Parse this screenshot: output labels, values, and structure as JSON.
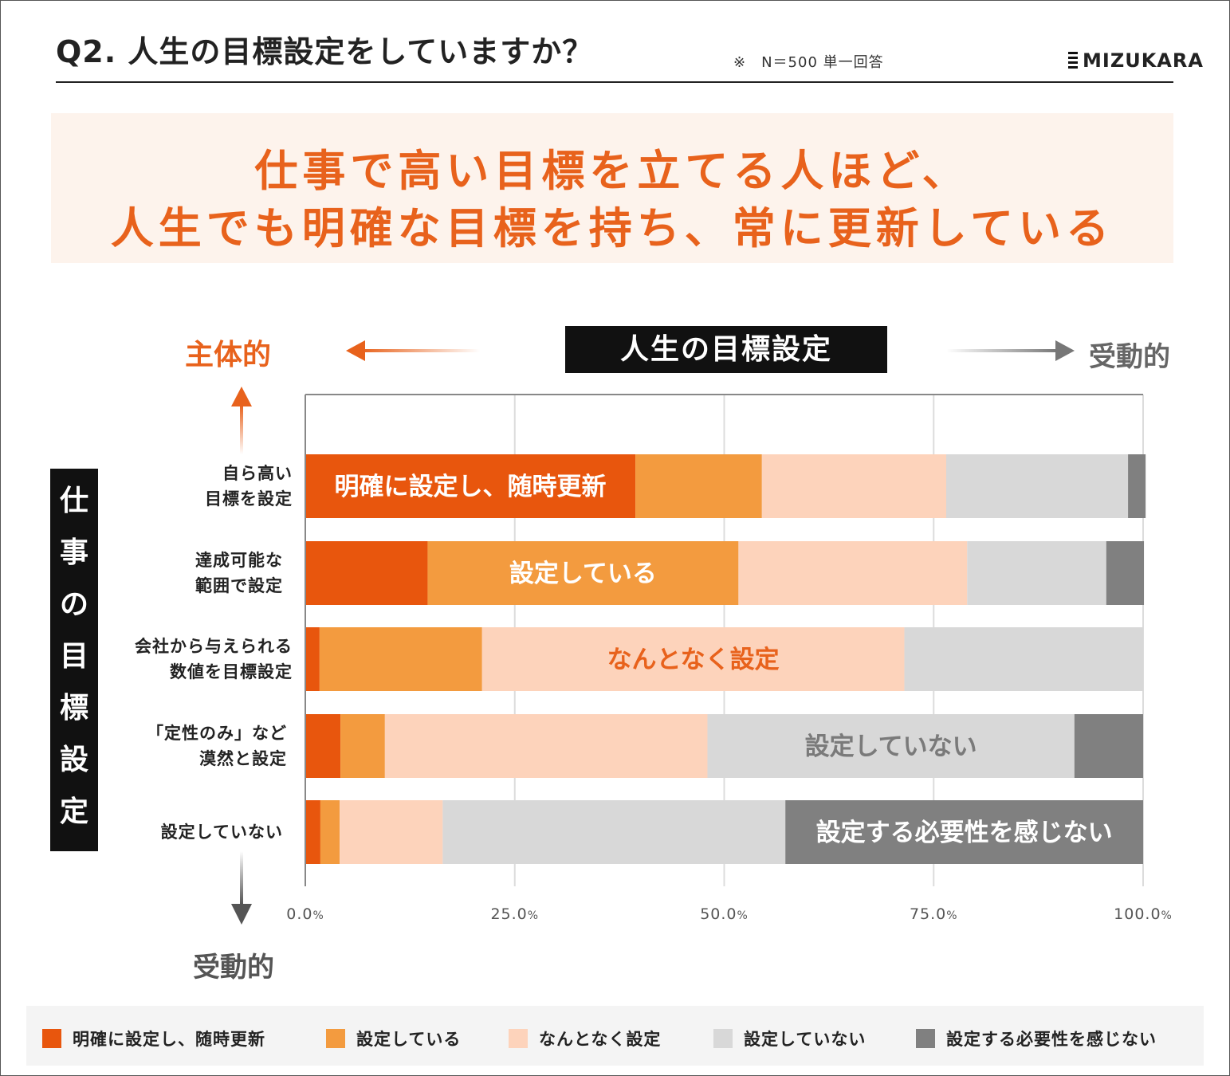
{
  "header": {
    "title": "Q2. 人生の目標設定をしていますか？",
    "note": "※　N＝500 単一回答",
    "logo": "MIZUKARA"
  },
  "headline": {
    "line1": "仕事で高い目標を立てる人ほど、",
    "line2": "人生でも明確な目標を持ち、常に更新している"
  },
  "axis_labels": {
    "life_goal_title": "人生の目標設定",
    "left_word": "主体的",
    "right_word": "受動的",
    "bottom_word": "受動的",
    "work_goal_title": [
      "仕",
      "事",
      "の",
      "目",
      "標",
      "設",
      "定"
    ]
  },
  "colors": {
    "accent": "#e8621c",
    "series": [
      "#e8560d",
      "#f39b3f",
      "#fdd3bb",
      "#d8d8d8",
      "#808080"
    ]
  },
  "chart_data": {
    "type": "bar",
    "orientation": "horizontal",
    "stacked": true,
    "categories": [
      "自ら高い\n目標を設定",
      "達成可能な\n範囲で設定",
      "会社から与えられる\n数値を目標設定",
      "「定性のみ」など\n漠然と設定",
      "設定していない"
    ],
    "series": [
      {
        "name": "明確に設定し、随時更新",
        "values": [
          39.4,
          14.6,
          1.7,
          4.2,
          1.8
        ]
      },
      {
        "name": "設定している",
        "values": [
          15.1,
          37.1,
          19.4,
          5.3,
          2.3
        ]
      },
      {
        "name": "なんとなく設定",
        "values": [
          22.0,
          27.3,
          50.4,
          38.5,
          12.3
        ]
      },
      {
        "name": "設定していない",
        "values": [
          21.7,
          16.6,
          28.5,
          43.8,
          40.9
        ]
      },
      {
        "name": "設定する必要性を感じない",
        "values": [
          2.1,
          4.5,
          0,
          8.2,
          42.7
        ]
      }
    ],
    "in_bar_labels": [
      {
        "text": "明確に設定し、随時更新",
        "row": 0,
        "series": 0,
        "color": "#ffffff"
      },
      {
        "text": "設定している",
        "row": 1,
        "series": 1,
        "color": "#ffffff"
      },
      {
        "text": "なんとなく設定",
        "row": 2,
        "series": 2,
        "color": "#e8621c"
      },
      {
        "text": "設定していない",
        "row": 3,
        "series": 3,
        "color": "#7a7a7a"
      },
      {
        "text": "設定する必要性を感じない",
        "row": 4,
        "series": 4,
        "color": "#ffffff"
      }
    ],
    "xlim": [
      0,
      100
    ],
    "xticks": [
      {
        "value": 0,
        "num": "0.0",
        "unit": "%"
      },
      {
        "value": 25,
        "num": "25.0",
        "unit": "%"
      },
      {
        "value": 50,
        "num": "50.0",
        "unit": "%"
      },
      {
        "value": 75,
        "num": "75.0",
        "unit": "%"
      },
      {
        "value": 100,
        "num": "100.0",
        "unit": "%"
      }
    ],
    "grid": true,
    "legend_position": "bottom"
  }
}
